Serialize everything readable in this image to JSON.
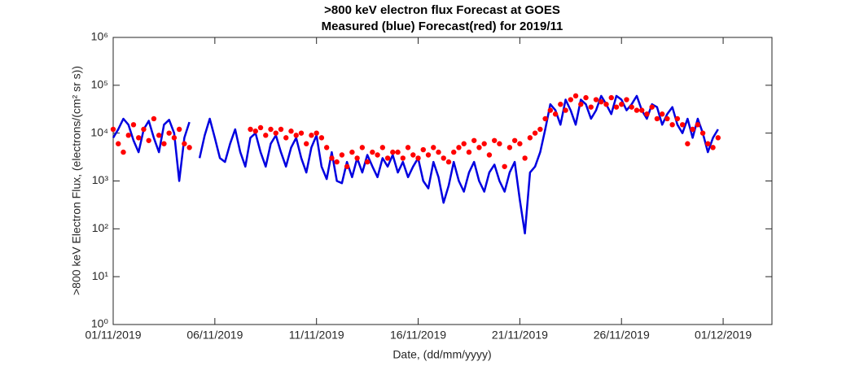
{
  "chart_data": {
    "type": "line",
    "title": ">800 keV electron flux Forecast at GOES",
    "subtitle": "Measured (blue) Forecast(red) for 2019/11",
    "x_label": "Date, (dd/mm/yyyy)",
    "y_label": ">800 keV Electron Flux, (electrons/(cm² sr s))",
    "log_y": true,
    "xlim": [
      1,
      33.4
    ],
    "ylim": [
      1,
      1000000
    ],
    "xticks": [
      {
        "value": 1,
        "label": "01/11/2019"
      },
      {
        "value": 6,
        "label": "06/11/2019"
      },
      {
        "value": 11,
        "label": "11/11/2019"
      },
      {
        "value": 16,
        "label": "16/11/2019"
      },
      {
        "value": 21,
        "label": "21/11/2019"
      },
      {
        "value": 26,
        "label": "26/11/2019"
      },
      {
        "value": 31,
        "label": "01/12/2019"
      }
    ],
    "yticks": [
      {
        "value": 1,
        "label": "10⁰"
      },
      {
        "value": 10,
        "label": "10¹"
      },
      {
        "value": 100,
        "label": "10²"
      },
      {
        "value": 1000,
        "label": "10³"
      },
      {
        "value": 10000,
        "label": "10⁴"
      },
      {
        "value": 100000,
        "label": "10⁵"
      },
      {
        "value": 1000000,
        "label": "10⁶"
      }
    ],
    "series": [
      {
        "type": "line",
        "color": "#0000e0",
        "x": [
          1,
          1.25,
          1.5,
          1.75,
          2,
          2.25,
          2.5,
          2.75,
          3,
          3.25,
          3.5,
          3.75,
          4,
          4.25,
          4.5,
          4.75,
          5,
          5.25,
          5.5,
          5.75,
          6,
          6.25,
          6.5,
          6.75,
          7,
          7.25,
          7.5,
          7.75,
          8,
          8.25,
          8.5,
          8.75,
          9,
          9.25,
          9.5,
          9.75,
          10,
          10.25,
          10.5,
          10.75,
          11,
          11.25,
          11.5,
          11.75,
          12,
          12.25,
          12.5,
          12.75,
          13,
          13.25,
          13.5,
          13.75,
          14,
          14.25,
          14.5,
          14.75,
          15,
          15.25,
          15.5,
          15.75,
          16,
          16.25,
          16.5,
          16.75,
          17,
          17.25,
          17.5,
          17.75,
          18,
          18.25,
          18.5,
          18.75,
          19,
          19.25,
          19.5,
          19.75,
          20,
          20.25,
          20.5,
          20.75,
          21,
          21.25,
          21.5,
          21.75,
          22,
          22.25,
          22.5,
          22.75,
          23,
          23.25,
          23.5,
          23.75,
          24,
          24.25,
          24.5,
          24.75,
          25,
          25.25,
          25.5,
          25.75,
          26,
          26.25,
          26.5,
          26.75,
          27,
          27.25,
          27.5,
          27.75,
          28,
          28.25,
          28.5,
          28.75,
          29,
          29.25,
          29.5,
          29.75,
          30,
          30.25,
          30.5,
          30.75
        ],
        "values": [
          8000,
          12000,
          20000,
          15000,
          7000,
          4000,
          12000,
          18000,
          8000,
          4000,
          15000,
          19000,
          10000,
          1000,
          8000,
          17000,
          null,
          3000,
          9000,
          20000,
          8000,
          3000,
          2500,
          6000,
          12000,
          4000,
          2000,
          8000,
          10000,
          4000,
          2000,
          6000,
          9000,
          4000,
          2000,
          5000,
          8000,
          3000,
          1500,
          5000,
          9000,
          2000,
          1100,
          4000,
          1000,
          900,
          2500,
          1200,
          3000,
          1500,
          3500,
          2000,
          1200,
          3000,
          2000,
          3500,
          1500,
          2500,
          1200,
          2000,
          3000,
          1000,
          700,
          2500,
          1200,
          350,
          800,
          2500,
          1000,
          600,
          1500,
          2500,
          1000,
          600,
          1500,
          2200,
          1000,
          600,
          1500,
          2500,
          400,
          80,
          1500,
          2000,
          4000,
          12000,
          40000,
          30000,
          15000,
          50000,
          30000,
          15000,
          50000,
          40000,
          20000,
          30000,
          60000,
          40000,
          25000,
          60000,
          50000,
          30000,
          40000,
          60000,
          30000,
          20000,
          40000,
          35000,
          15000,
          25000,
          35000,
          15000,
          10000,
          20000,
          8000,
          20000,
          10000,
          4000,
          8000,
          12000
        ]
      },
      {
        "type": "scatter",
        "color": "#ff0000",
        "x": [
          1,
          1.25,
          1.5,
          1.75,
          2,
          2.25,
          2.5,
          2.75,
          3,
          3.25,
          3.5,
          3.75,
          4,
          4.25,
          4.5,
          4.75,
          7.75,
          8,
          8.25,
          8.5,
          8.75,
          9,
          9.25,
          9.5,
          9.75,
          10,
          10.25,
          10.5,
          10.75,
          11,
          11.25,
          11.5,
          11.75,
          12,
          12.25,
          12.5,
          12.75,
          13,
          13.25,
          13.5,
          13.75,
          14,
          14.25,
          14.5,
          14.75,
          15,
          15.25,
          15.5,
          15.75,
          16,
          16.25,
          16.5,
          16.75,
          17,
          17.25,
          17.5,
          17.75,
          18,
          18.25,
          18.5,
          18.75,
          19,
          19.25,
          19.5,
          19.75,
          20,
          20.25,
          20.5,
          20.75,
          21,
          21.25,
          21.5,
          21.75,
          22,
          22.25,
          22.5,
          22.75,
          23,
          23.25,
          23.5,
          23.75,
          24,
          24.25,
          24.5,
          24.75,
          25,
          25.25,
          25.5,
          25.75,
          26,
          26.25,
          26.5,
          26.75,
          27,
          27.25,
          27.5,
          27.75,
          28,
          28.25,
          28.5,
          28.75,
          29,
          29.25,
          29.5,
          29.75,
          30,
          30.25,
          30.5,
          30.75
        ],
        "values": [
          12000,
          6000,
          4000,
          9000,
          15000,
          8000,
          12000,
          7000,
          20000,
          9000,
          6000,
          10000,
          8000,
          12000,
          6000,
          5000,
          12000,
          11000,
          13000,
          9000,
          12000,
          10000,
          12000,
          8000,
          11000,
          9000,
          10000,
          6000,
          9000,
          10000,
          8000,
          5000,
          3000,
          2500,
          3500,
          2000,
          4000,
          3000,
          5000,
          2500,
          4000,
          3500,
          5000,
          3000,
          4000,
          4000,
          3000,
          5000,
          3500,
          3000,
          4500,
          3500,
          5000,
          4000,
          3000,
          2500,
          4000,
          5000,
          6000,
          4000,
          7000,
          5000,
          6000,
          3500,
          7000,
          6000,
          2000,
          5000,
          7000,
          6000,
          3000,
          8000,
          10000,
          12000,
          20000,
          30000,
          25000,
          40000,
          30000,
          50000,
          60000,
          40000,
          55000,
          35000,
          50000,
          45000,
          40000,
          55000,
          35000,
          40000,
          50000,
          35000,
          30000,
          30000,
          25000,
          35000,
          20000,
          25000,
          20000,
          15000,
          20000,
          15000,
          6000,
          12000,
          15000,
          10000,
          6000,
          5000,
          8000
        ]
      }
    ]
  }
}
